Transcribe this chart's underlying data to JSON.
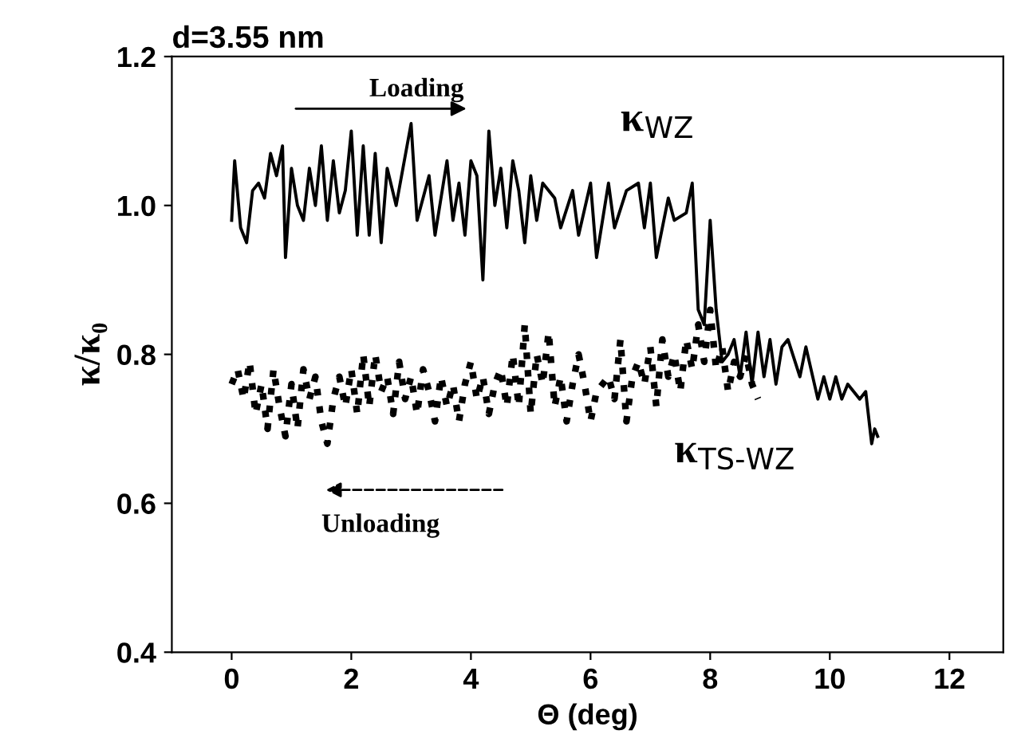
{
  "chart_data": {
    "type": "line",
    "title": "d=3.55 nm",
    "xlabel": "Θ (deg)",
    "ylabel": "κ/κ₀",
    "xlim": [
      -1,
      12.9
    ],
    "xticks": [
      0,
      2,
      4,
      6,
      8,
      10,
      12
    ],
    "ylim": [
      0.4,
      1.2
    ],
    "yticks": [
      {
        "value": 0.4,
        "label": "0.4"
      },
      {
        "value": 0.6,
        "label": "0.6"
      },
      {
        "value": 0.8,
        "label": "0.8"
      },
      {
        "value": 1.0,
        "label": "1.0"
      },
      {
        "value": 1.2,
        "label": "1.2"
      }
    ],
    "grid": false,
    "legend": false,
    "annotations": [
      "Loading",
      "Unloading"
    ],
    "series": [
      {
        "name": "κ$_{WZ}$",
        "color": "#000000",
        "line_style": "solid",
        "x": [
          0,
          0.05,
          0.15,
          0.25,
          0.35,
          0.45,
          0.55,
          0.65,
          0.75,
          0.85,
          0.9,
          1.0,
          1.1,
          1.2,
          1.3,
          1.4,
          1.5,
          1.6,
          1.7,
          1.8,
          1.9,
          2.0,
          2.1,
          2.2,
          2.3,
          2.4,
          2.5,
          2.6,
          2.75,
          3.0,
          3.1,
          3.3,
          3.4,
          3.6,
          3.7,
          3.8,
          3.9,
          4.0,
          4.1,
          4.2,
          4.3,
          4.4,
          4.5,
          4.6,
          4.7,
          4.8,
          4.9,
          5.0,
          5.1,
          5.2,
          5.4,
          5.5,
          5.7,
          5.8,
          6.0,
          6.1,
          6.3,
          6.4,
          6.6,
          6.8,
          6.9,
          7.0,
          7.1,
          7.3,
          7.4,
          7.6,
          7.7,
          7.8,
          7.9,
          8.0,
          8.1,
          8.2,
          8.3,
          8.4,
          8.5,
          8.6,
          8.7,
          8.8,
          8.9,
          9.0,
          9.1,
          9.2,
          9.3,
          9.5,
          9.6,
          9.8,
          9.9,
          10.0,
          10.1,
          10.2,
          10.3,
          10.5,
          10.6,
          10.7,
          10.75,
          10.8
        ],
        "values": [
          0.98,
          1.06,
          0.97,
          0.95,
          1.02,
          1.03,
          1.01,
          1.07,
          1.04,
          1.08,
          0.93,
          1.05,
          1.0,
          0.98,
          1.05,
          1.0,
          1.08,
          0.98,
          1.06,
          0.99,
          1.02,
          1.1,
          0.96,
          1.08,
          0.96,
          1.07,
          0.95,
          1.05,
          1.0,
          1.11,
          0.98,
          1.04,
          0.96,
          1.06,
          0.98,
          1.03,
          0.96,
          1.06,
          1.04,
          0.9,
          1.1,
          1.0,
          1.05,
          0.97,
          1.06,
          1.02,
          0.95,
          1.04,
          0.98,
          1.03,
          1.01,
          0.97,
          1.02,
          0.96,
          1.03,
          0.93,
          1.03,
          0.97,
          1.02,
          1.03,
          0.97,
          1.03,
          0.93,
          1.01,
          0.98,
          0.99,
          1.03,
          0.86,
          0.84,
          0.98,
          0.86,
          0.79,
          0.8,
          0.82,
          0.77,
          0.83,
          0.76,
          0.83,
          0.77,
          0.82,
          0.76,
          0.81,
          0.82,
          0.77,
          0.81,
          0.74,
          0.77,
          0.74,
          0.77,
          0.74,
          0.76,
          0.74,
          0.75,
          0.68,
          0.7,
          0.69
        ]
      },
      {
        "name": "κ$_{TS-WZ}$",
        "color": "#000000",
        "line_style": "dotted",
        "x": [
          0,
          0.1,
          0.2,
          0.3,
          0.4,
          0.5,
          0.6,
          0.7,
          0.8,
          0.9,
          1.0,
          1.1,
          1.2,
          1.3,
          1.4,
          1.5,
          1.6,
          1.7,
          1.8,
          1.9,
          2.0,
          2.1,
          2.2,
          2.3,
          2.4,
          2.5,
          2.6,
          2.7,
          2.8,
          2.9,
          3.0,
          3.1,
          3.2,
          3.3,
          3.4,
          3.5,
          3.6,
          3.7,
          3.8,
          3.9,
          4.0,
          4.1,
          4.2,
          4.3,
          4.4,
          4.5,
          4.6,
          4.7,
          4.8,
          4.9,
          5.0,
          5.1,
          5.2,
          5.3,
          5.4,
          5.5,
          5.6,
          5.7,
          5.8,
          5.9,
          6.0,
          6.1,
          6.3,
          6.4,
          6.5,
          6.6,
          6.7,
          6.8,
          6.9,
          7.0,
          7.1,
          7.2,
          7.3,
          7.4,
          7.5,
          7.6,
          7.7,
          7.8,
          7.9,
          8.0,
          8.1,
          8.2,
          8.3,
          8.4,
          8.5,
          8.6,
          8.7,
          8.8
        ],
        "values": [
          0.76,
          0.78,
          0.74,
          0.79,
          0.72,
          0.76,
          0.7,
          0.78,
          0.73,
          0.69,
          0.76,
          0.7,
          0.78,
          0.74,
          0.77,
          0.71,
          0.68,
          0.74,
          0.77,
          0.73,
          0.78,
          0.72,
          0.8,
          0.73,
          0.8,
          0.75,
          0.77,
          0.72,
          0.79,
          0.74,
          0.77,
          0.72,
          0.78,
          0.75,
          0.71,
          0.77,
          0.73,
          0.76,
          0.71,
          0.76,
          0.79,
          0.74,
          0.77,
          0.72,
          0.76,
          0.78,
          0.73,
          0.8,
          0.73,
          0.84,
          0.72,
          0.8,
          0.76,
          0.83,
          0.73,
          0.77,
          0.71,
          0.76,
          0.8,
          0.76,
          0.71,
          0.75,
          0.77,
          0.74,
          0.82,
          0.71,
          0.77,
          0.79,
          0.76,
          0.81,
          0.73,
          0.82,
          0.77,
          0.8,
          0.75,
          0.82,
          0.78,
          0.84,
          0.79,
          0.86,
          0.78,
          0.81,
          0.75,
          0.79,
          0.77,
          0.8,
          0.76,
          0.74
        ]
      }
    ]
  }
}
